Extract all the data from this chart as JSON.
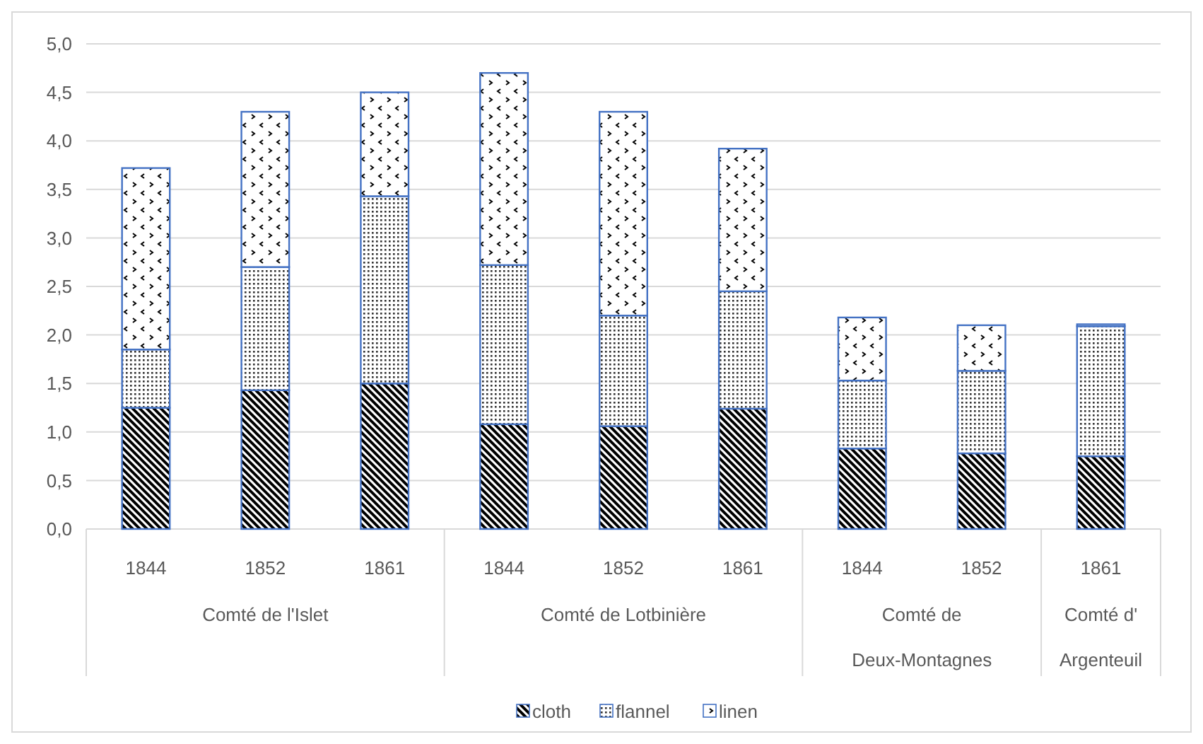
{
  "chart_data": {
    "type": "bar",
    "stacked": true,
    "categories": [
      "1844",
      "1852",
      "1861",
      "1844",
      "1852",
      "1861",
      "1844",
      "1852",
      "1861"
    ],
    "annotations": [
      "Comté de l'Islet",
      "Comté de Lotbinière",
      "Comté de Deux-Montagnes",
      "Comté d' Argenteuil"
    ],
    "series": [
      {
        "name": "cloth",
        "color": "#4472c4",
        "values": [
          1.25,
          1.43,
          1.5,
          1.08,
          1.06,
          1.24,
          0.83,
          0.78,
          0.75
        ]
      },
      {
        "name": "flannel",
        "color": "#4472c4",
        "values": [
          0.6,
          1.27,
          1.93,
          1.64,
          1.14,
          1.21,
          0.7,
          0.85,
          1.34
        ]
      },
      {
        "name": "linen",
        "color": "#4472c4",
        "values": [
          1.87,
          1.6,
          1.07,
          1.98,
          2.1,
          1.47,
          0.65,
          0.47,
          0.02
        ]
      }
    ],
    "ylim": [
      0,
      5
    ],
    "yticks": [
      {
        "value": 0,
        "label": "0,0"
      },
      {
        "value": 0.5,
        "label": "0,5"
      },
      {
        "value": 1,
        "label": "1,0"
      },
      {
        "value": 1.5,
        "label": "1,5"
      },
      {
        "value": 2,
        "label": "2,0"
      },
      {
        "value": 2.5,
        "label": "2,5"
      },
      {
        "value": 3,
        "label": "3,0"
      },
      {
        "value": 3.5,
        "label": "3,5"
      },
      {
        "value": 4,
        "label": "4,0"
      },
      {
        "value": 4.5,
        "label": "4,5"
      },
      {
        "value": 5,
        "label": "5,0"
      }
    ],
    "grid": "y",
    "legend": "bottom"
  }
}
